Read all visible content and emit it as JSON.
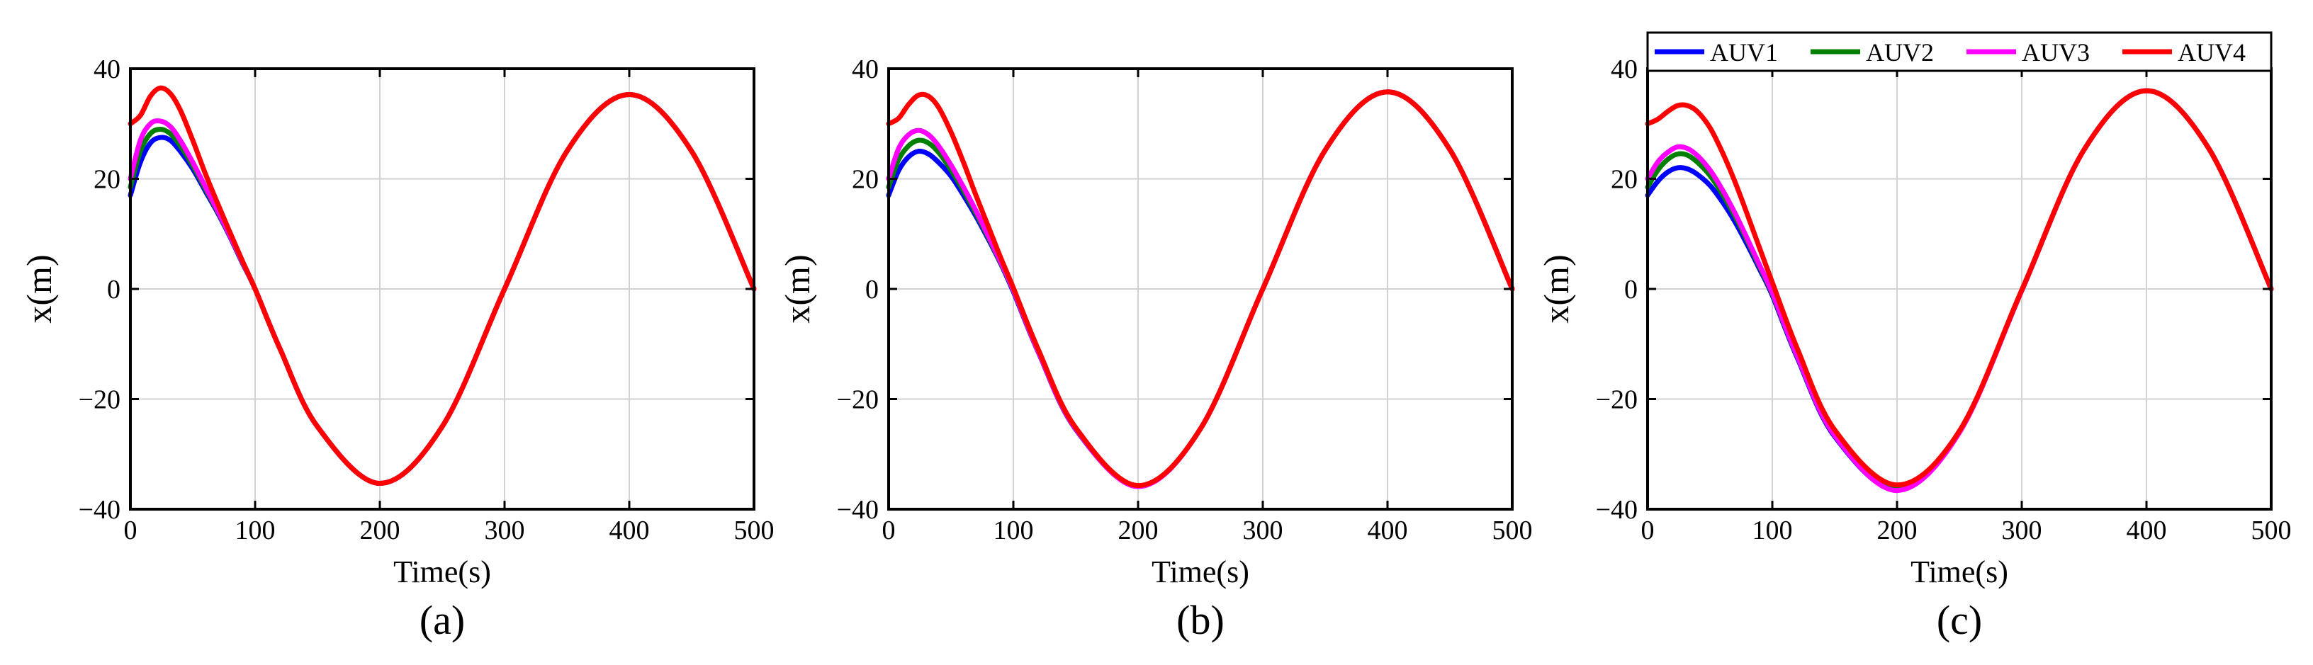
{
  "chart_data": [
    {
      "type": "line",
      "panel_label": "(a)",
      "xlabel": "Time(s)",
      "ylabel": "x(m)",
      "xlim": [
        0,
        500
      ],
      "ylim": [
        -40,
        40
      ],
      "xticks": [
        "0",
        "100",
        "200",
        "300",
        "400",
        "500"
      ],
      "yticks": [
        "40",
        "20",
        "0",
        "−20",
        "−40"
      ],
      "grid": true,
      "legend": false,
      "series": [
        {
          "color": "#0000ff",
          "x": [
            0,
            8,
            16,
            24,
            32,
            40,
            50,
            60,
            70,
            80,
            90,
            100,
            120,
            150,
            200,
            250,
            300,
            350,
            400,
            450,
            500
          ],
          "y": [
            17,
            23,
            26.5,
            27.5,
            27,
            25,
            21.8,
            17.8,
            13.8,
            9.4,
            4.6,
            0,
            -10.9,
            -25,
            -35.3,
            -25,
            0,
            25,
            35.3,
            25,
            0
          ]
        },
        {
          "color": "#008000",
          "x": [
            0,
            8,
            16,
            24,
            32,
            40,
            50,
            60,
            70,
            80,
            90,
            100,
            120,
            150,
            200,
            250,
            300,
            350,
            400,
            450,
            500
          ],
          "y": [
            18.5,
            25,
            28.2,
            29,
            28.2,
            26,
            22.4,
            18.2,
            14,
            9.5,
            4.7,
            0,
            -10.9,
            -25,
            -35.3,
            -25,
            0,
            25,
            35.3,
            25,
            0
          ]
        },
        {
          "color": "#ff00ff",
          "x": [
            0,
            8,
            16,
            24,
            32,
            40,
            50,
            60,
            70,
            80,
            90,
            100,
            120,
            150,
            200,
            250,
            300,
            350,
            400,
            450,
            500
          ],
          "y": [
            20,
            27,
            30,
            30.5,
            29.5,
            27,
            23,
            18.6,
            14.2,
            9.6,
            4.8,
            0,
            -10.9,
            -25,
            -35.3,
            -25,
            0,
            25,
            35.3,
            25,
            0
          ]
        },
        {
          "color": "#ff0000",
          "x": [
            0,
            8,
            16,
            24,
            32,
            40,
            50,
            60,
            70,
            80,
            90,
            100,
            120,
            150,
            200,
            250,
            300,
            350,
            400,
            450,
            500
          ],
          "y": [
            30,
            31.5,
            35,
            36.5,
            35.5,
            32.5,
            27,
            21,
            15.5,
            10.2,
            5,
            0,
            -10.9,
            -25,
            -35.3,
            -25,
            0,
            25,
            35.3,
            25,
            0
          ]
        }
      ]
    },
    {
      "type": "line",
      "panel_label": "(b)",
      "xlabel": "Time(s)",
      "ylabel": "x(m)",
      "xlim": [
        0,
        500
      ],
      "ylim": [
        -40,
        40
      ],
      "xticks": [
        "0",
        "100",
        "200",
        "300",
        "400",
        "500"
      ],
      "yticks": [
        "40",
        "20",
        "0",
        "−20",
        "−40"
      ],
      "grid": true,
      "legend": false,
      "series": [
        {
          "color": "#0000ff",
          "x": [
            0,
            8,
            16,
            24,
            32,
            40,
            50,
            60,
            70,
            80,
            90,
            100,
            120,
            150,
            200,
            250,
            300,
            350,
            400,
            450,
            500
          ],
          "y": [
            17,
            21.5,
            24,
            25,
            24.5,
            23,
            20.5,
            17,
            13.2,
            9,
            4.5,
            -0.5,
            -11.5,
            -25.5,
            -35.8,
            -25.4,
            0,
            25.2,
            35.8,
            25.3,
            0
          ]
        },
        {
          "color": "#008000",
          "x": [
            0,
            8,
            16,
            24,
            32,
            40,
            50,
            60,
            70,
            80,
            90,
            100,
            120,
            150,
            200,
            250,
            300,
            350,
            400,
            450,
            500
          ],
          "y": [
            18.5,
            23.5,
            26,
            27,
            26.5,
            24.8,
            21.6,
            17.8,
            13.7,
            9.3,
            4.6,
            -0.3,
            -11.4,
            -25.4,
            -35.8,
            -25.4,
            0,
            25.2,
            35.8,
            25.3,
            0
          ]
        },
        {
          "color": "#ff00ff",
          "x": [
            0,
            8,
            16,
            24,
            32,
            40,
            50,
            60,
            70,
            80,
            90,
            100,
            120,
            150,
            200,
            250,
            300,
            350,
            400,
            450,
            500
          ],
          "y": [
            20,
            25.5,
            28,
            28.8,
            28,
            26,
            22.5,
            18.5,
            14.2,
            9.6,
            4.8,
            -0.2,
            -11.4,
            -25.4,
            -35.9,
            -25.4,
            0,
            25.2,
            35.8,
            25.3,
            0
          ]
        },
        {
          "color": "#ff0000",
          "x": [
            0,
            8,
            16,
            24,
            32,
            40,
            50,
            60,
            70,
            80,
            90,
            100,
            120,
            150,
            200,
            250,
            300,
            350,
            400,
            450,
            500
          ],
          "y": [
            30,
            31,
            33.5,
            35.2,
            35,
            33,
            28.5,
            23,
            17,
            11.3,
            5.6,
            0.2,
            -11,
            -25.2,
            -35.7,
            -25.4,
            0,
            25.2,
            35.8,
            25.3,
            0
          ]
        }
      ]
    },
    {
      "type": "line",
      "panel_label": "(c)",
      "xlabel": "Time(s)",
      "ylabel": "x(m)",
      "xlim": [
        0,
        500
      ],
      "ylim": [
        -40,
        40
      ],
      "xticks": [
        "0",
        "100",
        "200",
        "300",
        "400",
        "500"
      ],
      "yticks": [
        "40",
        "20",
        "0",
        "−20",
        "−40"
      ],
      "grid": true,
      "legend": true,
      "legend_position": "top",
      "series": [
        {
          "name": "AUV1",
          "color": "#0000ff",
          "x": [
            0,
            8,
            16,
            24,
            32,
            40,
            50,
            60,
            70,
            80,
            90,
            100,
            120,
            150,
            200,
            250,
            300,
            350,
            400,
            450,
            500
          ],
          "y": [
            17,
            19.5,
            21.2,
            22,
            21.8,
            20.8,
            18.8,
            15.8,
            12.2,
            8,
            3.5,
            -1.2,
            -12.5,
            -26.8,
            -36.5,
            -26,
            -0.3,
            25.3,
            36,
            25.5,
            0
          ]
        },
        {
          "name": "AUV2",
          "color": "#008000",
          "x": [
            0,
            8,
            16,
            24,
            32,
            40,
            50,
            60,
            70,
            80,
            90,
            100,
            120,
            150,
            200,
            250,
            300,
            350,
            400,
            450,
            500
          ],
          "y": [
            18.5,
            21.5,
            23.5,
            24.5,
            24.3,
            23,
            20.6,
            17.2,
            13.2,
            8.7,
            3.9,
            -0.9,
            -12.3,
            -26.6,
            -36.3,
            -26,
            -0.3,
            25.3,
            36,
            25.5,
            0
          ]
        },
        {
          "name": "AUV3",
          "color": "#ff00ff",
          "x": [
            0,
            8,
            16,
            24,
            32,
            40,
            50,
            60,
            70,
            80,
            90,
            100,
            120,
            150,
            200,
            250,
            300,
            350,
            400,
            450,
            500
          ],
          "y": [
            20,
            23,
            24.8,
            25.8,
            25.5,
            24.2,
            21.6,
            18,
            13.8,
            9.1,
            4.2,
            -0.7,
            -12.2,
            -26.6,
            -36.6,
            -26.1,
            -0.3,
            25.3,
            36,
            25.5,
            0
          ]
        },
        {
          "name": "AUV4",
          "color": "#ff0000",
          "x": [
            0,
            8,
            16,
            24,
            32,
            40,
            50,
            60,
            70,
            80,
            90,
            100,
            120,
            150,
            200,
            250,
            300,
            350,
            400,
            450,
            500
          ],
          "y": [
            30,
            30.8,
            32.2,
            33.3,
            33.3,
            32.2,
            29.3,
            24.8,
            19.5,
            13.5,
            7.3,
            1.2,
            -10.8,
            -25.6,
            -35.6,
            -25.8,
            -0.2,
            25.3,
            36,
            25.5,
            0
          ]
        }
      ]
    }
  ]
}
